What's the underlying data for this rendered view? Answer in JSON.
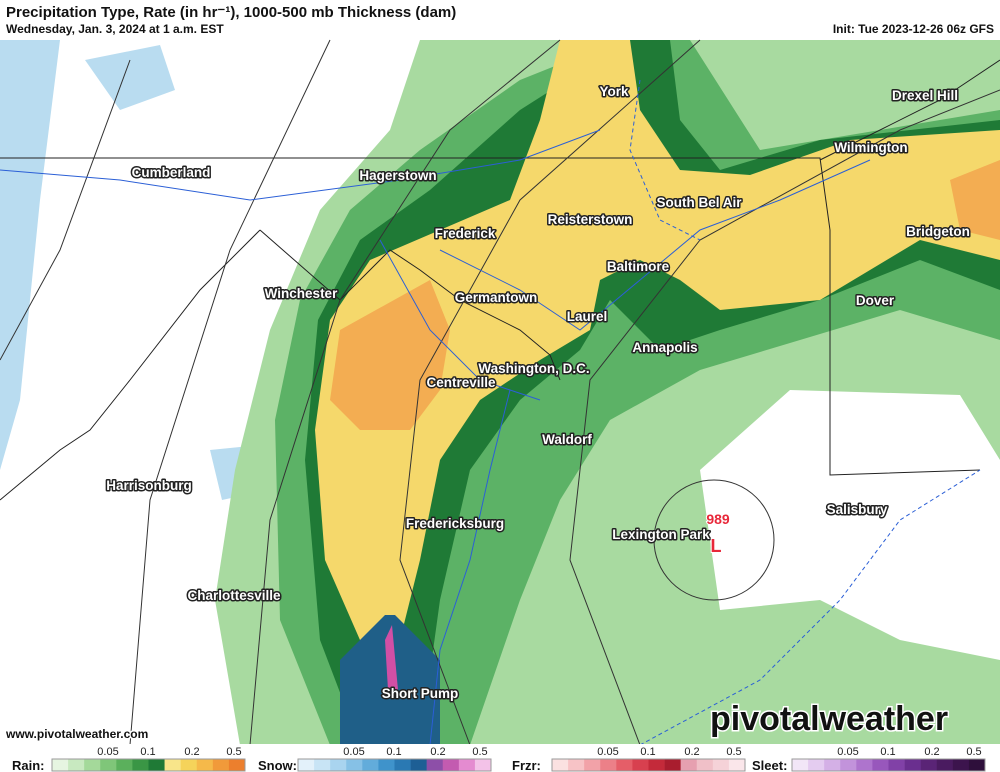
{
  "header": {
    "title": "Precipitation Type, Rate (in hr⁻¹), 1000-500 mb Thickness (dam)",
    "subtitle": "Wednesday, Jan. 3, 2024 at 1 a.m. EST",
    "init": "Init: Tue 2023-12-26 06z GFS"
  },
  "cities": [
    "York",
    "Drexel Hill",
    "Cumberland",
    "Hagerstown",
    "Wilmington",
    "South Bel Air",
    "Reisterstown",
    "Frederick",
    "Bridgeton",
    "Baltimore",
    "Winchester",
    "Germantown",
    "Dover",
    "Laurel",
    "Annapolis",
    "Washington, D.C.",
    "Centreville",
    "Waldorf",
    "Harrisonburg",
    "Salisbury",
    "Fredericksburg",
    "Lexington Park",
    "Charlottesville",
    "Short Pump"
  ],
  "low": {
    "pressure": "989",
    "symbol": "L"
  },
  "footer": {
    "url": "www.pivotalweather.com",
    "brand": "pivotalweather"
  },
  "legend": [
    {
      "label": "Rain:",
      "ticks": [
        0.05,
        0.1,
        0.2,
        0.5
      ]
    },
    {
      "label": "Snow:",
      "ticks": [
        0.05,
        0.1,
        0.2,
        0.5
      ]
    },
    {
      "label": "Frzr:",
      "ticks": [
        0.05,
        0.1,
        0.2,
        0.5
      ]
    },
    {
      "label": "Sleet:",
      "ticks": [
        0.05,
        0.1,
        0.2,
        0.5
      ]
    }
  ]
}
